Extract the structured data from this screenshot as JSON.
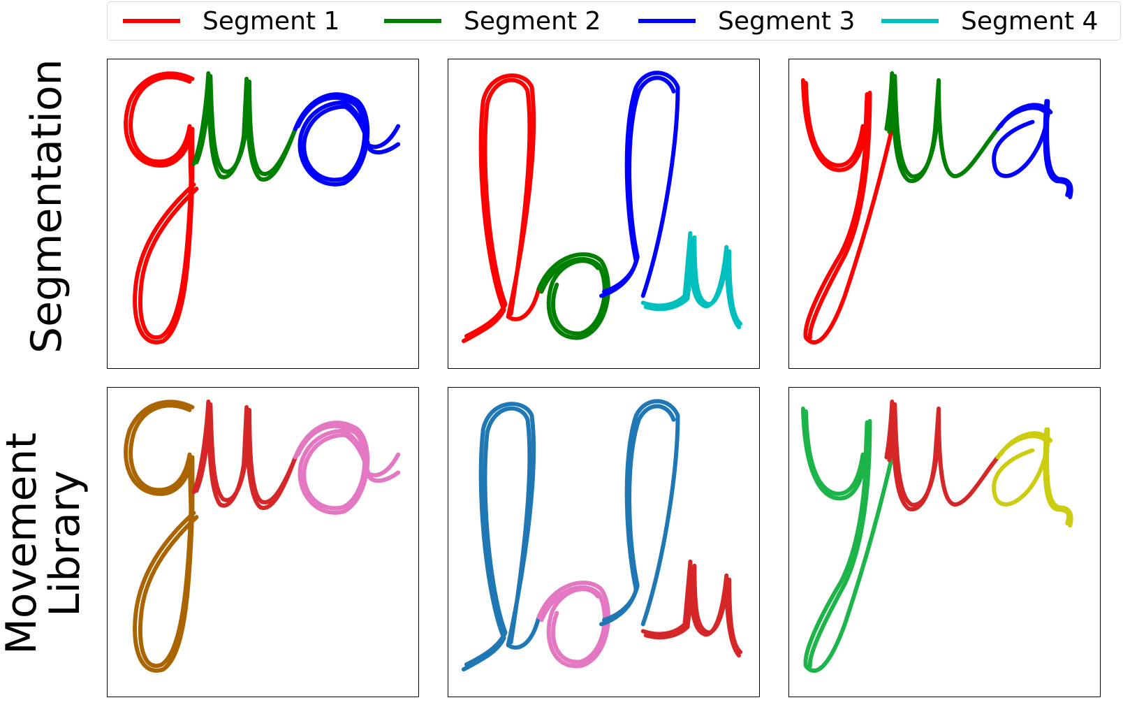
{
  "legend": {
    "entries": [
      {
        "label": "Segment 1",
        "color": "#ff0000"
      },
      {
        "label": "Segment 2",
        "color": "#008000"
      },
      {
        "label": "Segment 3",
        "color": "#0000ff"
      },
      {
        "label": "Segment 4",
        "color": "#00bfbf"
      }
    ]
  },
  "rows": {
    "top": {
      "label": "Segmentation"
    },
    "bottom": {
      "line1": "Movement",
      "line2": "Library"
    }
  },
  "chart_data": [
    {
      "type": "line",
      "row": "Segmentation",
      "word": "guo",
      "series": [
        {
          "name": "Segment 1",
          "color": "#ff0000",
          "letters": "g"
        },
        {
          "name": "Segment 2",
          "color": "#008000",
          "letters": "u"
        },
        {
          "name": "Segment 3",
          "color": "#0000ff",
          "letters": "o"
        }
      ]
    },
    {
      "type": "line",
      "row": "Segmentation",
      "word": "lolu",
      "series": [
        {
          "name": "Segment 1",
          "color": "#ff0000",
          "letters": "l"
        },
        {
          "name": "Segment 2",
          "color": "#008000",
          "letters": "o"
        },
        {
          "name": "Segment 3",
          "color": "#0000ff",
          "letters": "l"
        },
        {
          "name": "Segment 4",
          "color": "#00bfbf",
          "letters": "u"
        }
      ]
    },
    {
      "type": "line",
      "row": "Segmentation",
      "word": "yua",
      "series": [
        {
          "name": "Segment 1",
          "color": "#ff0000",
          "letters": "y"
        },
        {
          "name": "Segment 2",
          "color": "#008000",
          "letters": "u"
        },
        {
          "name": "Segment 3",
          "color": "#0000ff",
          "letters": "a"
        }
      ]
    },
    {
      "type": "line",
      "row": "Movement Library",
      "word": "guo",
      "series": [
        {
          "color": "#aa6400",
          "letters": "g"
        },
        {
          "color": "#d62728",
          "letters": "u"
        },
        {
          "color": "#e377c2",
          "letters": "o"
        }
      ]
    },
    {
      "type": "line",
      "row": "Movement Library",
      "word": "lolu",
      "series": [
        {
          "color": "#1f77b4",
          "letters": "l"
        },
        {
          "color": "#e377c2",
          "letters": "o"
        },
        {
          "color": "#1f77b4",
          "letters": "l"
        },
        {
          "color": "#d62728",
          "letters": "u"
        }
      ]
    },
    {
      "type": "line",
      "row": "Movement Library",
      "word": "yua",
      "series": [
        {
          "color": "#1db44a",
          "letters": "y"
        },
        {
          "color": "#d62728",
          "letters": "u"
        },
        {
          "color": "#cccc11",
          "letters": "a"
        }
      ]
    }
  ]
}
